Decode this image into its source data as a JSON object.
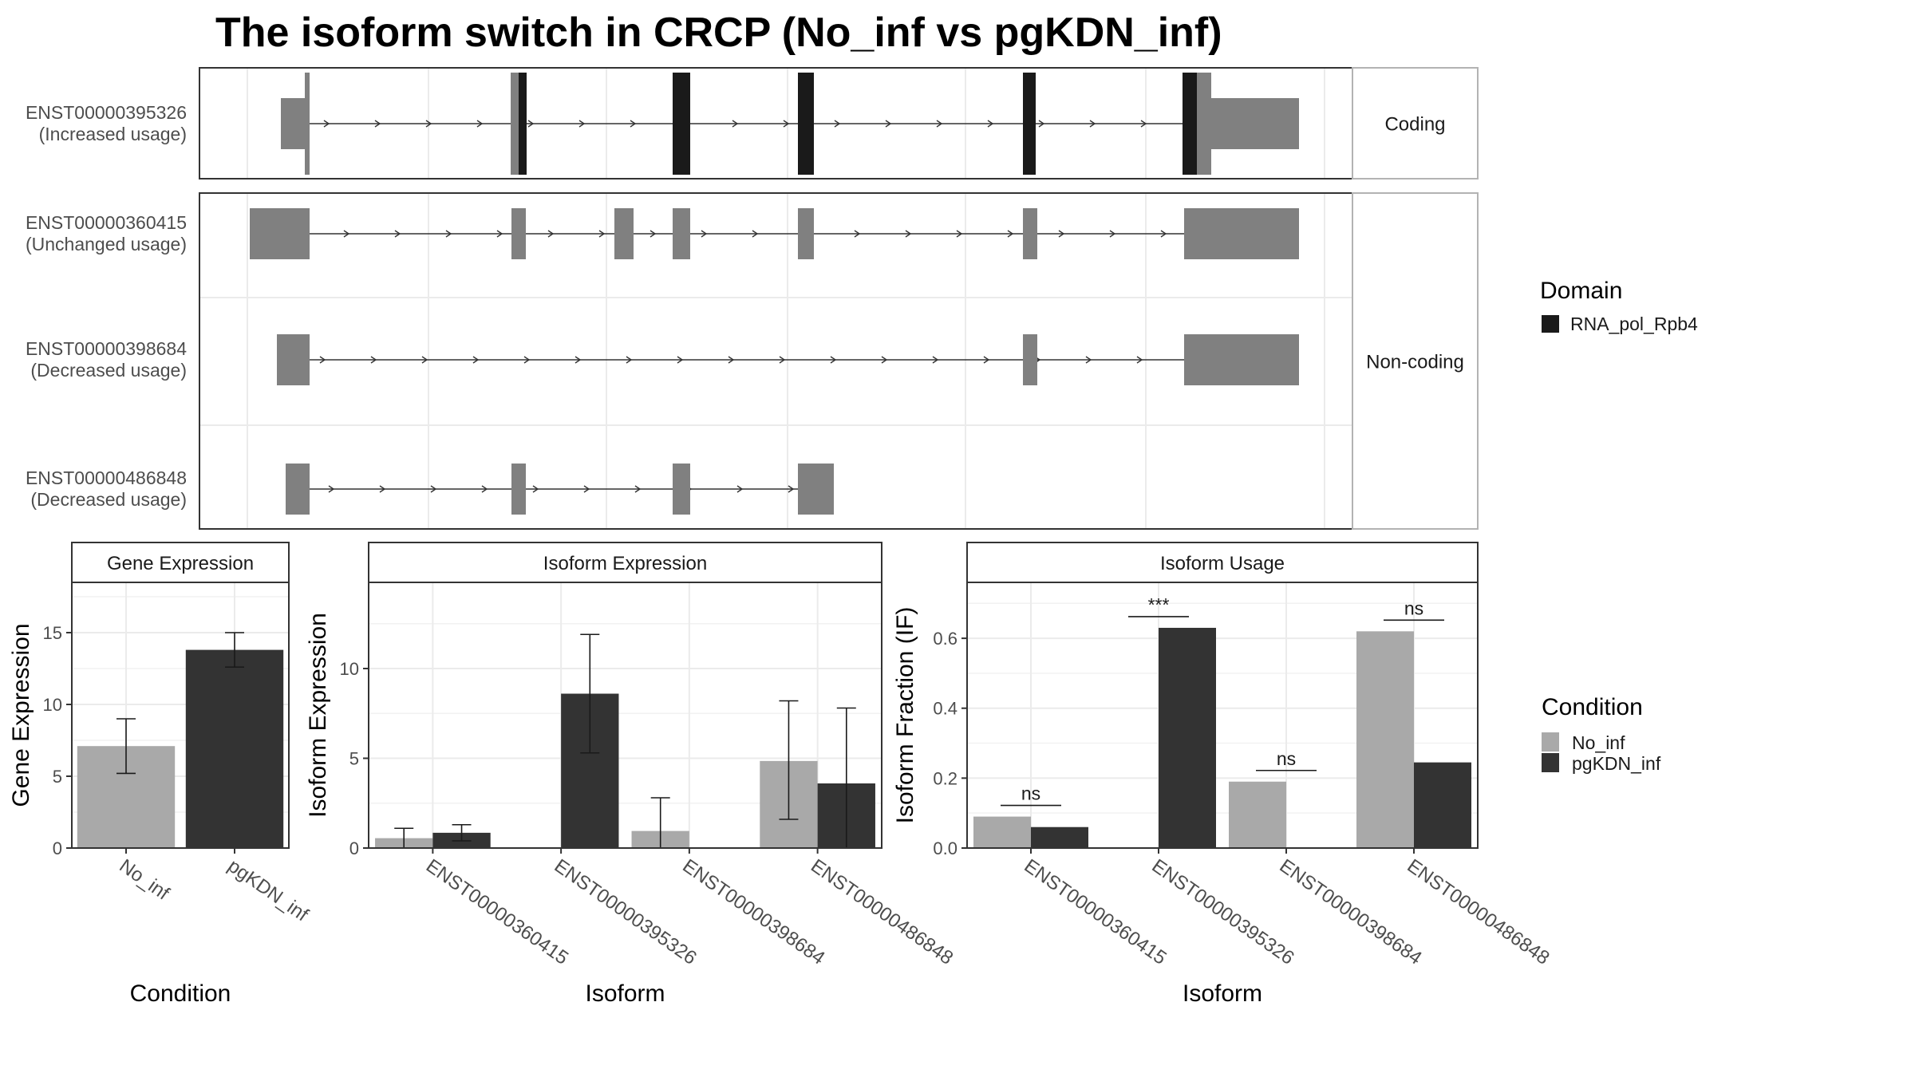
{
  "title": "The isoform switch in CRCP (No_inf vs pgKDN_inf)",
  "colors": {
    "domain": "#1a1a1a",
    "exon": "#808080",
    "no_inf": "#a9a9a9",
    "pgkdn_inf": "#333333",
    "grid": "#ebebeb",
    "strip": "#ffffff"
  },
  "legends": {
    "domain": {
      "title": "Domain",
      "items": [
        "RNA_pol_Rpb4"
      ]
    },
    "condition": {
      "title": "Condition",
      "items": [
        "No_inf",
        "pgKDN_inf"
      ]
    }
  },
  "facets": {
    "coding": "Coding",
    "noncoding": "Non-coding"
  },
  "structure": {
    "isoforms": [
      {
        "id": "ENST00000395326",
        "usage": "(Increased usage)",
        "group": "coding"
      },
      {
        "id": "ENST00000360415",
        "usage": "(Unchanged usage)",
        "group": "noncoding"
      },
      {
        "id": "ENST00000398684",
        "usage": "(Decreased usage)",
        "group": "noncoding"
      },
      {
        "id": "ENST00000486848",
        "usage": "(Decreased usage)",
        "group": "noncoding"
      }
    ]
  },
  "chart_data": [
    {
      "type": "bar",
      "panel": "Gene Expression",
      "xlabel": "Condition",
      "ylabel": "Gene Expression",
      "categories": [
        "No_inf",
        "pgKDN_inf"
      ],
      "values": [
        7.1,
        13.8
      ],
      "error_low": [
        5.2,
        12.6
      ],
      "error_high": [
        9.0,
        15.0
      ],
      "ylim": [
        0,
        18.5
      ],
      "yticks": [
        0,
        5,
        10,
        15
      ]
    },
    {
      "type": "bar",
      "panel": "Isoform Expression",
      "xlabel": "Isoform",
      "ylabel": "Isoform Expression",
      "categories": [
        "ENST00000360415",
        "ENST00000395326",
        "ENST00000398684",
        "ENST00000486848"
      ],
      "series": [
        {
          "name": "No_inf",
          "values": [
            0.55,
            0.0,
            0.95,
            4.85
          ],
          "error_low": [
            0.0,
            0.0,
            0.0,
            1.6
          ],
          "error_high": [
            1.1,
            0.0,
            2.8,
            8.2
          ]
        },
        {
          "name": "pgKDN_inf",
          "values": [
            0.85,
            8.6,
            0.0,
            3.6
          ],
          "error_low": [
            0.4,
            5.3,
            0.0,
            0.0
          ],
          "error_high": [
            1.3,
            11.9,
            0.0,
            7.8
          ]
        }
      ],
      "ylim": [
        0,
        14.8
      ],
      "yticks": [
        0,
        5,
        10
      ]
    },
    {
      "type": "bar",
      "panel": "Isoform Usage",
      "xlabel": "Isoform",
      "ylabel": "Isoform Fraction (IF)",
      "categories": [
        "ENST00000360415",
        "ENST00000395326",
        "ENST00000398684",
        "ENST00000486848"
      ],
      "series": [
        {
          "name": "No_inf",
          "values": [
            0.09,
            0.0,
            0.19,
            0.62
          ]
        },
        {
          "name": "pgKDN_inf",
          "values": [
            0.06,
            0.63,
            0.0,
            0.245
          ]
        }
      ],
      "significance": [
        "ns",
        "***",
        "ns",
        "ns"
      ],
      "ylim": [
        0,
        0.76
      ],
      "yticks": [
        0.0,
        0.2,
        0.4,
        0.6
      ]
    }
  ]
}
